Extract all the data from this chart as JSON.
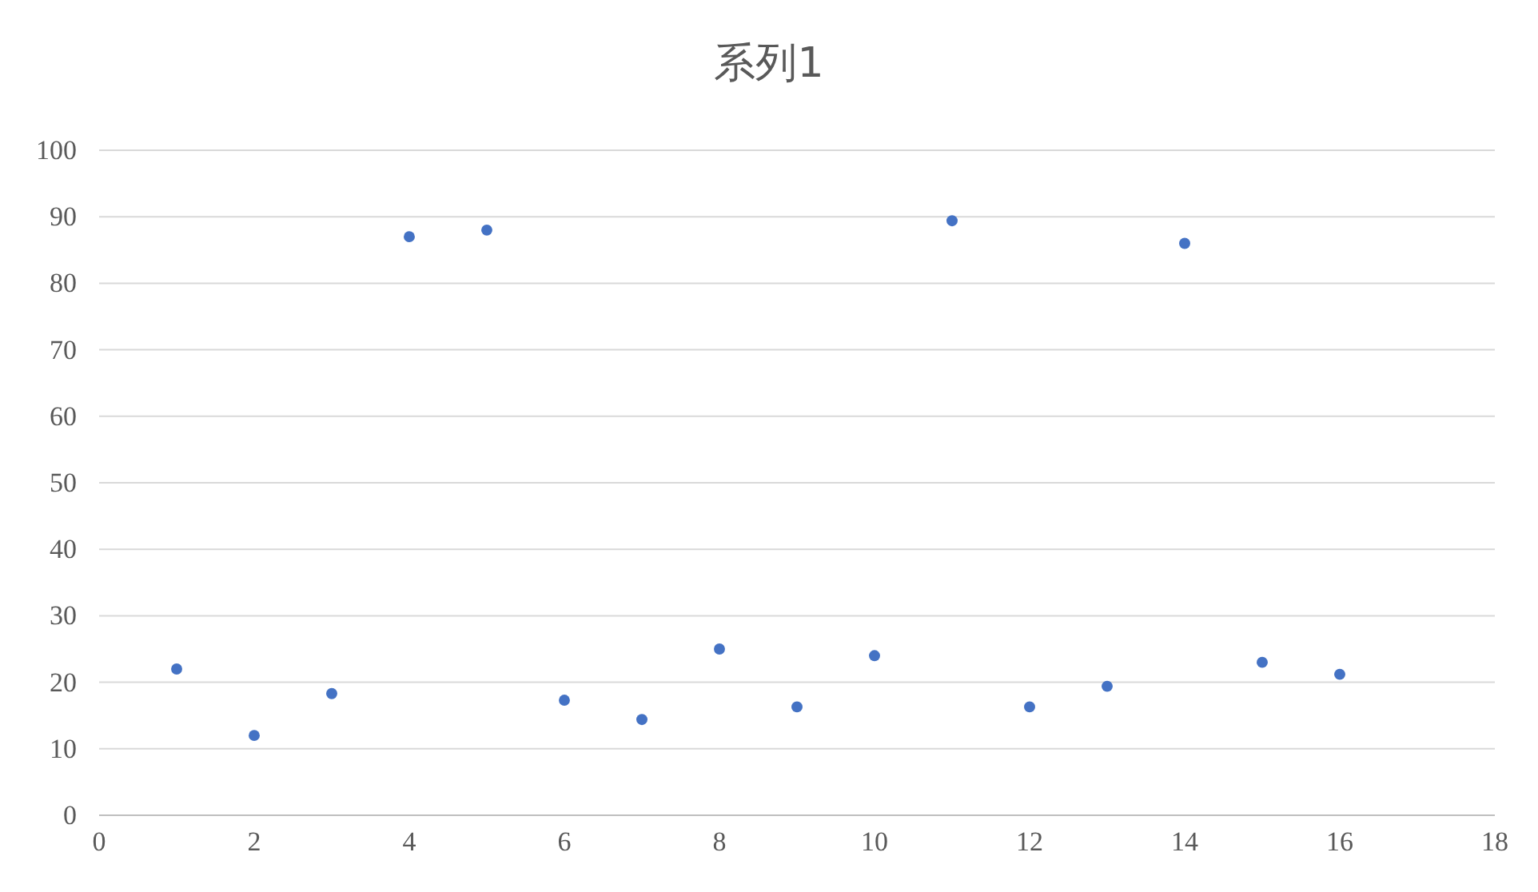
{
  "chart_data": {
    "type": "scatter",
    "title": "系列1",
    "x": [
      1,
      2,
      3,
      4,
      5,
      6,
      7,
      8,
      9,
      10,
      11,
      12,
      13,
      14,
      15,
      16
    ],
    "series": [
      {
        "color": "#4472c4",
        "values": [
          22,
          12,
          18.3,
          87,
          88,
          17.3,
          14.4,
          25,
          16.3,
          24,
          89.4,
          16.3,
          19.4,
          86,
          23,
          21.2
        ]
      }
    ],
    "xlim": [
      0,
      18
    ],
    "xticks": [
      0,
      2,
      4,
      6,
      8,
      10,
      12,
      14,
      16,
      18
    ],
    "ylim": [
      0,
      100
    ],
    "yticks": [
      0,
      10,
      20,
      30,
      40,
      50,
      60,
      70,
      80,
      90,
      100
    ],
    "grid": "y",
    "marker": "circle",
    "legend": false
  }
}
